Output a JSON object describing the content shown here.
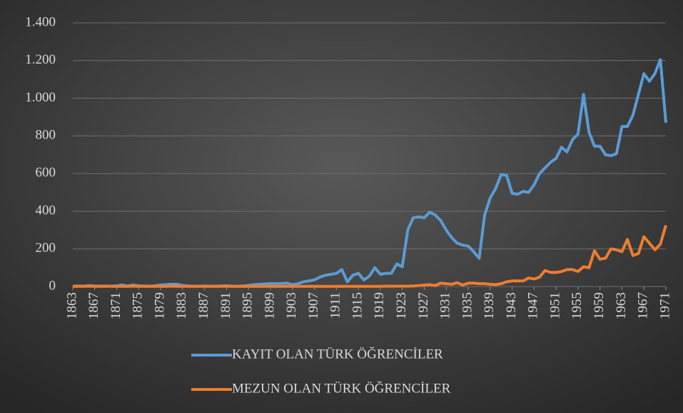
{
  "chart_data": {
    "type": "line",
    "x": [
      1863,
      1864,
      1865,
      1866,
      1867,
      1868,
      1869,
      1870,
      1871,
      1872,
      1873,
      1874,
      1875,
      1876,
      1877,
      1878,
      1879,
      1880,
      1881,
      1882,
      1883,
      1884,
      1885,
      1886,
      1887,
      1888,
      1889,
      1890,
      1891,
      1892,
      1893,
      1894,
      1895,
      1896,
      1897,
      1898,
      1899,
      1900,
      1901,
      1902,
      1903,
      1904,
      1905,
      1906,
      1907,
      1908,
      1909,
      1910,
      1911,
      1912,
      1913,
      1914,
      1915,
      1916,
      1917,
      1918,
      1919,
      1920,
      1921,
      1922,
      1923,
      1924,
      1925,
      1926,
      1927,
      1928,
      1929,
      1930,
      1931,
      1932,
      1933,
      1934,
      1935,
      1936,
      1937,
      1938,
      1939,
      1940,
      1941,
      1942,
      1943,
      1944,
      1945,
      1946,
      1947,
      1948,
      1949,
      1950,
      1951,
      1952,
      1953,
      1954,
      1955,
      1956,
      1957,
      1958,
      1959,
      1960,
      1961,
      1962,
      1963,
      1964,
      1965,
      1966,
      1967,
      1968,
      1969,
      1970,
      1971
    ],
    "series": [
      {
        "name": "KAYIT OLAN TÜRK ÖĞRENCİLER",
        "color": "#5b9bd5",
        "values": [
          2,
          3,
          2,
          5,
          3,
          2,
          3,
          2,
          4,
          8,
          3,
          8,
          4,
          3,
          2,
          4,
          8,
          10,
          12,
          12,
          6,
          3,
          2,
          2,
          3,
          2,
          2,
          3,
          4,
          2,
          2,
          3,
          6,
          10,
          12,
          14,
          16,
          15,
          16,
          18,
          10,
          15,
          25,
          30,
          35,
          50,
          60,
          65,
          70,
          90,
          25,
          60,
          70,
          35,
          55,
          100,
          65,
          70,
          70,
          120,
          105,
          300,
          365,
          370,
          365,
          395,
          380,
          350,
          300,
          260,
          230,
          220,
          215,
          185,
          150,
          380,
          470,
          520,
          595,
          590,
          495,
          490,
          505,
          500,
          540,
          600,
          630,
          660,
          680,
          740,
          715,
          780,
          810,
          1020,
          820,
          745,
          745,
          700,
          695,
          705,
          850,
          850,
          910,
          1020,
          1130,
          1090,
          1130,
          1205,
          870
        ]
      },
      {
        "name": "MEZUN OLAN TÜRK ÖĞRENCİLER",
        "color": "#ed7d31",
        "values": [
          1,
          1,
          1,
          2,
          1,
          1,
          1,
          1,
          1,
          1,
          1,
          2,
          1,
          1,
          1,
          1,
          1,
          1,
          2,
          1,
          1,
          1,
          1,
          1,
          1,
          1,
          1,
          1,
          2,
          1,
          1,
          1,
          1,
          1,
          1,
          1,
          1,
          1,
          1,
          1,
          1,
          1,
          1,
          1,
          1,
          1,
          1,
          1,
          1,
          1,
          1,
          1,
          1,
          1,
          1,
          1,
          1,
          2,
          2,
          2,
          2,
          2,
          3,
          5,
          8,
          10,
          5,
          18,
          15,
          12,
          20,
          8,
          18,
          18,
          15,
          15,
          12,
          10,
          15,
          25,
          30,
          30,
          30,
          45,
          40,
          50,
          85,
          75,
          75,
          80,
          90,
          90,
          80,
          105,
          100,
          190,
          145,
          150,
          200,
          195,
          185,
          250,
          165,
          175,
          265,
          230,
          195,
          225,
          325
        ]
      }
    ],
    "xlim": [
      1863,
      1971
    ],
    "xticks": [
      1863,
      1867,
      1871,
      1875,
      1879,
      1883,
      1887,
      1891,
      1895,
      1899,
      1903,
      1907,
      1911,
      1915,
      1919,
      1923,
      1927,
      1931,
      1935,
      1939,
      1943,
      1947,
      1951,
      1955,
      1959,
      1963,
      1967,
      1971
    ],
    "ylim": [
      0,
      1400
    ],
    "yticks": [
      0,
      200,
      400,
      600,
      800,
      {
        "value": 1000,
        "label": "1.000"
      },
      {
        "value": 1200,
        "label": "1.200"
      },
      {
        "value": 1400,
        "label": "1.400"
      }
    ],
    "grid": true,
    "legend": "bottom"
  }
}
